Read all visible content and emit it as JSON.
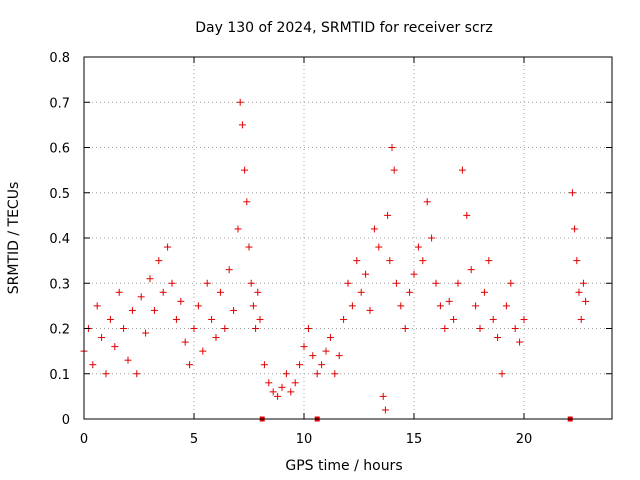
{
  "chart_data": {
    "type": "scatter",
    "title": "Day 130 of 2024, SRMTID for receiver scrz",
    "xlabel": "GPS time / hours",
    "ylabel": "SRMTID / TECUs",
    "xlim": [
      0,
      24
    ],
    "ylim": [
      0,
      0.8
    ],
    "xticks": [
      0,
      5,
      10,
      15,
      20
    ],
    "yticks": [
      0,
      0.1,
      0.2,
      0.3,
      0.4,
      0.5,
      0.6,
      0.7,
      0.8
    ],
    "grid": true,
    "marker": "plus",
    "color": "#e00000",
    "series": [
      {
        "name": "SRMTID",
        "x": [
          0.0,
          0.2,
          0.4,
          0.6,
          0.8,
          1.0,
          1.2,
          1.4,
          1.6,
          1.8,
          2.0,
          2.2,
          2.4,
          2.6,
          2.8,
          3.0,
          3.2,
          3.4,
          3.6,
          3.8,
          4.0,
          4.2,
          4.4,
          4.6,
          4.8,
          5.0,
          5.2,
          5.4,
          5.6,
          5.8,
          6.0,
          6.2,
          6.4,
          6.6,
          6.8,
          7.0,
          7.1,
          7.2,
          7.3,
          7.4,
          7.5,
          7.6,
          7.7,
          7.8,
          7.9,
          8.0,
          8.2,
          8.4,
          8.6,
          8.8,
          9.0,
          9.2,
          9.4,
          9.6,
          9.8,
          10.0,
          10.2,
          10.4,
          10.6,
          10.8,
          11.0,
          11.2,
          11.4,
          11.6,
          11.8,
          12.0,
          12.2,
          12.4,
          12.6,
          12.8,
          13.0,
          13.2,
          13.4,
          13.6,
          13.7,
          13.8,
          13.9,
          14.0,
          14.1,
          14.2,
          14.4,
          14.6,
          14.8,
          15.0,
          15.2,
          15.4,
          15.6,
          15.8,
          16.0,
          16.2,
          16.4,
          16.6,
          16.8,
          17.0,
          17.2,
          17.4,
          17.6,
          17.8,
          18.0,
          18.2,
          18.4,
          18.6,
          18.8,
          19.0,
          19.2,
          19.4,
          19.6,
          19.8,
          20.0,
          22.2,
          22.3,
          22.4,
          22.5,
          22.6,
          22.7,
          22.8
        ],
        "y": [
          0.15,
          0.2,
          0.12,
          0.25,
          0.18,
          0.1,
          0.22,
          0.16,
          0.28,
          0.2,
          0.13,
          0.24,
          0.1,
          0.27,
          0.19,
          0.31,
          0.24,
          0.35,
          0.28,
          0.38,
          0.3,
          0.22,
          0.26,
          0.17,
          0.12,
          0.2,
          0.25,
          0.15,
          0.3,
          0.22,
          0.18,
          0.28,
          0.2,
          0.33,
          0.24,
          0.42,
          0.7,
          0.65,
          0.55,
          0.48,
          0.38,
          0.3,
          0.25,
          0.2,
          0.28,
          0.22,
          0.12,
          0.08,
          0.06,
          0.05,
          0.07,
          0.1,
          0.06,
          0.08,
          0.12,
          0.16,
          0.2,
          0.14,
          0.1,
          0.12,
          0.15,
          0.18,
          0.1,
          0.14,
          0.22,
          0.3,
          0.25,
          0.35,
          0.28,
          0.32,
          0.24,
          0.42,
          0.38,
          0.05,
          0.02,
          0.45,
          0.35,
          0.6,
          0.55,
          0.3,
          0.25,
          0.2,
          0.28,
          0.32,
          0.38,
          0.35,
          0.48,
          0.4,
          0.3,
          0.25,
          0.2,
          0.26,
          0.22,
          0.3,
          0.55,
          0.45,
          0.33,
          0.25,
          0.2,
          0.28,
          0.35,
          0.22,
          0.18,
          0.1,
          0.25,
          0.3,
          0.2,
          0.17,
          0.22,
          0.5,
          0.42,
          0.35,
          0.28,
          0.22,
          0.3,
          0.26
        ]
      }
    ],
    "gap_markers_x": [
      8.1,
      10.6,
      22.1
    ]
  }
}
